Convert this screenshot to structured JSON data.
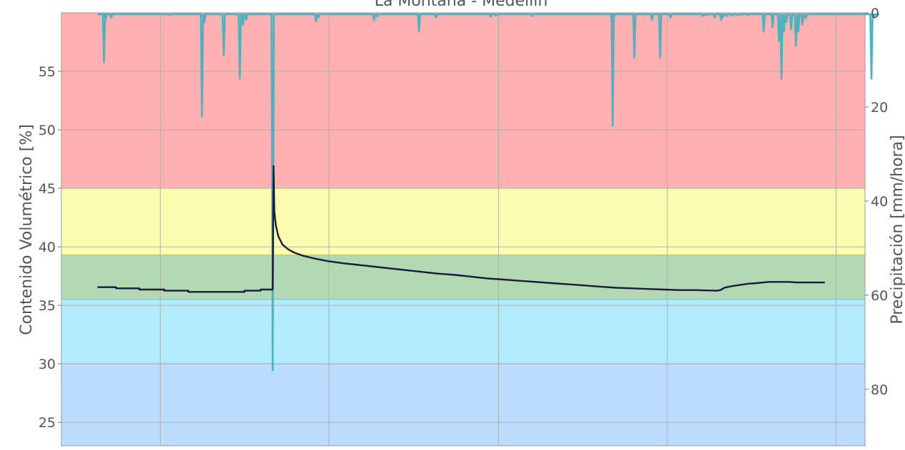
{
  "chart_data": {
    "type": "line",
    "title": "La Montaña - Medellín",
    "y_left": {
      "label": "Contenido Volumétrico [%]",
      "range": [
        23,
        60
      ],
      "ticks": [
        25,
        30,
        35,
        40,
        45,
        50,
        55
      ]
    },
    "y_right": {
      "label": "Precipitación [mm/hora]",
      "range": [
        0,
        92
      ],
      "inverted": true,
      "ticks": [
        0,
        20,
        40,
        60,
        80
      ]
    },
    "x": {
      "range": [
        0,
        100
      ],
      "gridlines": [
        12.3,
        33.3,
        54.4,
        75.4,
        96.4
      ],
      "tick_labels_visible": false
    },
    "grid": true,
    "bands": [
      {
        "name": "red",
        "from": 45,
        "to": 60,
        "color": "#ffb0b0"
      },
      {
        "name": "yellow",
        "from": 39.3,
        "to": 45,
        "color": "#fdfdb0"
      },
      {
        "name": "green",
        "from": 35.5,
        "to": 39.3,
        "color": "#b2d9b2"
      },
      {
        "name": "cyan",
        "from": 30,
        "to": 35.5,
        "color": "#b2ebfb"
      },
      {
        "name": "blue",
        "from": 23,
        "to": 30,
        "color": "#bbdcfd"
      }
    ],
    "series": [
      {
        "kind": "moisture",
        "axis": "left",
        "color": "#1a1a3e",
        "points": [
          [
            4.5,
            36.55
          ],
          [
            6.8,
            36.55
          ],
          [
            6.8,
            36.45
          ],
          [
            9.7,
            36.45
          ],
          [
            9.7,
            36.35
          ],
          [
            12.8,
            36.35
          ],
          [
            12.8,
            36.25
          ],
          [
            15.8,
            36.25
          ],
          [
            15.8,
            36.15
          ],
          [
            22.8,
            36.15
          ],
          [
            22.8,
            36.25
          ],
          [
            24.8,
            36.25
          ],
          [
            24.8,
            36.35
          ],
          [
            26.3,
            36.35
          ],
          [
            26.4,
            46.9
          ],
          [
            26.5,
            43.0
          ],
          [
            26.7,
            41.8
          ],
          [
            27.0,
            40.9
          ],
          [
            27.5,
            40.2
          ],
          [
            28.2,
            39.8
          ],
          [
            29.0,
            39.5
          ],
          [
            30.0,
            39.25
          ],
          [
            31.5,
            39.0
          ],
          [
            33.0,
            38.8
          ],
          [
            35.0,
            38.6
          ],
          [
            37.0,
            38.45
          ],
          [
            39.0,
            38.3
          ],
          [
            41.0,
            38.15
          ],
          [
            43.0,
            38.0
          ],
          [
            45.0,
            37.85
          ],
          [
            47.0,
            37.7
          ],
          [
            49.0,
            37.6
          ],
          [
            51.0,
            37.45
          ],
          [
            53.0,
            37.3
          ],
          [
            55.0,
            37.2
          ],
          [
            57.0,
            37.1
          ],
          [
            59.0,
            37.0
          ],
          [
            61.0,
            36.9
          ],
          [
            63.0,
            36.8
          ],
          [
            65.0,
            36.7
          ],
          [
            67.0,
            36.6
          ],
          [
            69.0,
            36.5
          ],
          [
            71.0,
            36.45
          ],
          [
            73.0,
            36.4
          ],
          [
            75.0,
            36.35
          ],
          [
            77.0,
            36.3
          ],
          [
            79.0,
            36.3
          ],
          [
            81.5,
            36.25
          ],
          [
            82.0,
            36.3
          ],
          [
            82.5,
            36.5
          ],
          [
            83.5,
            36.65
          ],
          [
            84.5,
            36.75
          ],
          [
            85.5,
            36.85
          ],
          [
            86.5,
            36.9
          ],
          [
            88.0,
            37.0
          ],
          [
            90.5,
            37.0
          ],
          [
            91.5,
            36.95
          ],
          [
            95.0,
            36.95
          ]
        ]
      },
      {
        "kind": "precipitation",
        "axis": "right",
        "color": "#4fb0bf",
        "baseline": 0.3,
        "spikes": [
          [
            5.3,
            10.5
          ],
          [
            5.5,
            1.4
          ],
          [
            6.2,
            1.0
          ],
          [
            13.5,
            0.5
          ],
          [
            17.5,
            22.0
          ],
          [
            17.8,
            2.0
          ],
          [
            20.2,
            9.0
          ],
          [
            22.2,
            14.0
          ],
          [
            22.6,
            2.5
          ],
          [
            23.0,
            1.5
          ],
          [
            26.3,
            76.0
          ],
          [
            31.7,
            1.8
          ],
          [
            32.0,
            1.0
          ],
          [
            38.9,
            1.5
          ],
          [
            39.3,
            0.8
          ],
          [
            44.5,
            4.0
          ],
          [
            46.6,
            1.0
          ],
          [
            53.4,
            0.8
          ],
          [
            54.1,
            0.6
          ],
          [
            58.6,
            0.7
          ],
          [
            68.5,
            2.0
          ],
          [
            68.8,
            0.8
          ],
          [
            68.6,
            24.0
          ],
          [
            71.3,
            9.5
          ],
          [
            73.5,
            1.5
          ],
          [
            74.5,
            9.5
          ],
          [
            75.8,
            1.0
          ],
          [
            79.8,
            0.7
          ],
          [
            80.1,
            0.5
          ],
          [
            80.5,
            0.5
          ],
          [
            81.3,
            1.0
          ],
          [
            82.1,
            1.5
          ],
          [
            82.3,
            1.0
          ],
          [
            82.8,
            0.7
          ],
          [
            83.5,
            0.6
          ],
          [
            84.1,
            0.5
          ],
          [
            84.5,
            0.5
          ],
          [
            85.5,
            0.5
          ],
          [
            87.4,
            4.0
          ],
          [
            88.5,
            3.0
          ],
          [
            89.3,
            6.0
          ],
          [
            89.6,
            14.0
          ],
          [
            89.9,
            4.0
          ],
          [
            90.2,
            2.0
          ],
          [
            90.8,
            3.5
          ],
          [
            91.4,
            7.0
          ],
          [
            91.7,
            4.0
          ],
          [
            92.2,
            2.5
          ],
          [
            92.6,
            1.2
          ],
          [
            100.8,
            14.0
          ],
          [
            101.1,
            1.0
          ],
          [
            101.5,
            0.5
          ]
        ]
      }
    ]
  }
}
